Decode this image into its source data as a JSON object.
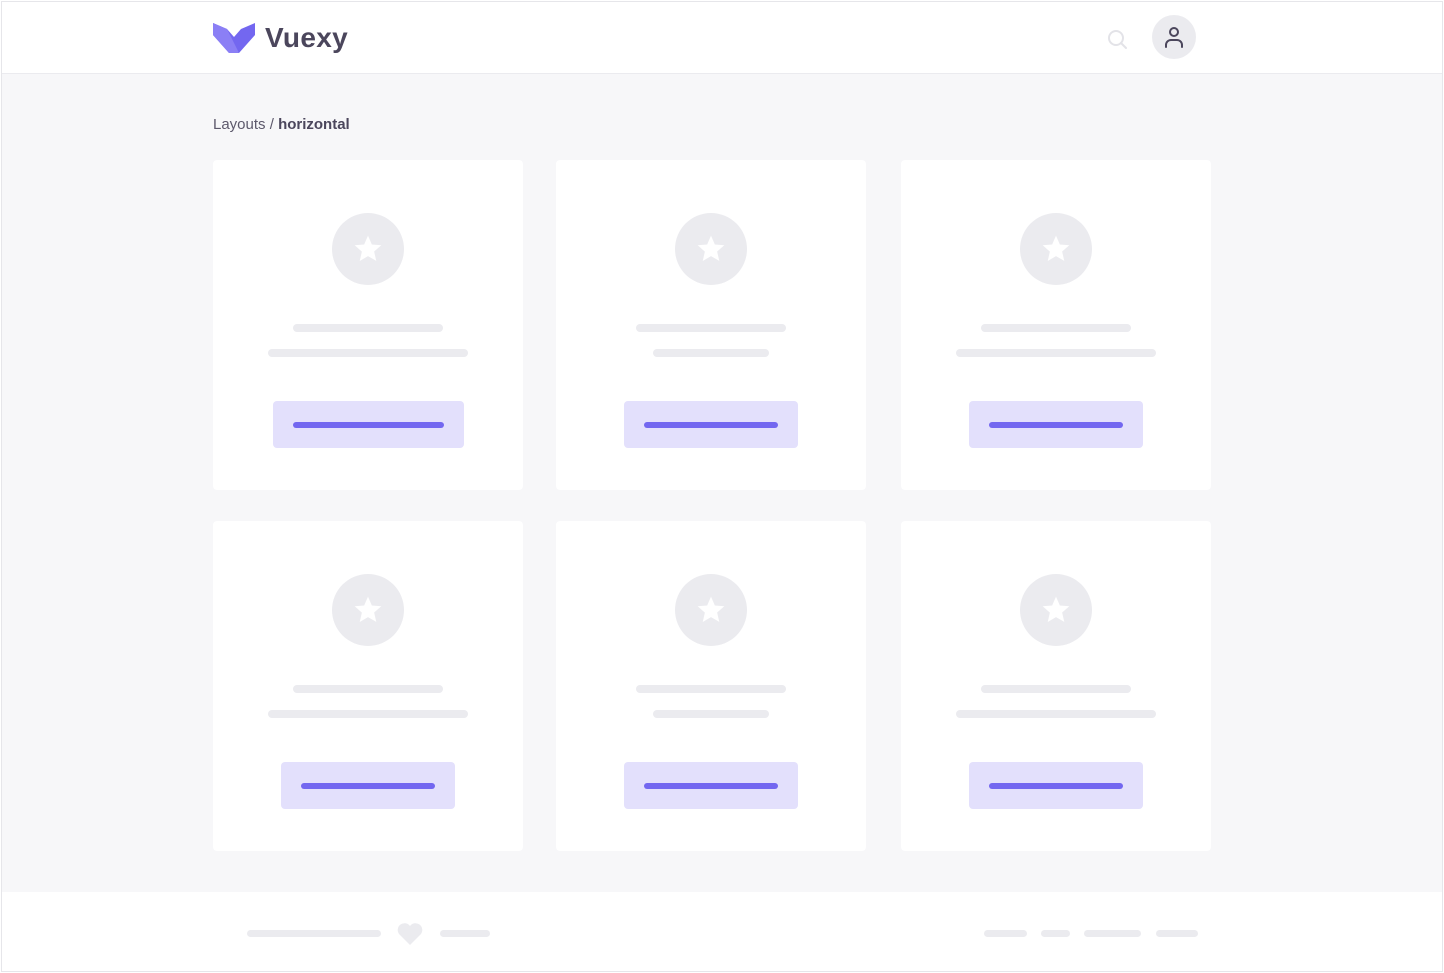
{
  "header": {
    "brand": "Vuexy",
    "brand_color": "#7367f0"
  },
  "breadcrumb": {
    "parent": "Layouts",
    "separator": " / ",
    "current": "horizontal"
  },
  "icons": {
    "logo": "vuexy-logo-icon",
    "search": "search-icon",
    "user": "user-icon",
    "card": "star-icon",
    "footer": "heart-icon"
  }
}
